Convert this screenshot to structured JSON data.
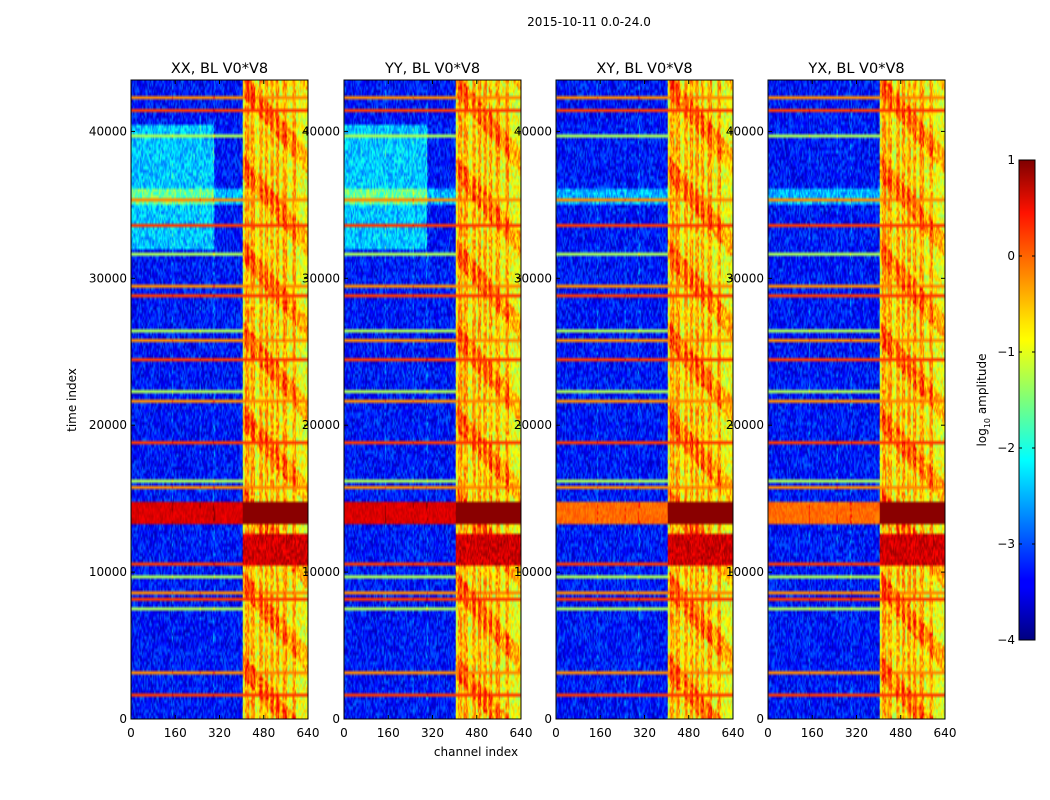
{
  "figure": {
    "suptitle": "2015-10-11 0.0-24.0"
  },
  "chart_data": {
    "type": "heatmap",
    "colormap": "jet",
    "xlabel": "channel index",
    "ylabel": "time index",
    "xlim": [
      0,
      640
    ],
    "ylim": [
      0,
      43500
    ],
    "xticks": [
      0,
      160,
      320,
      480,
      640
    ],
    "xtick_labels": [
      "0",
      "160",
      "320",
      "480",
      "640"
    ],
    "yticks": [
      0,
      10000,
      20000,
      30000,
      40000
    ],
    "ytick_labels": [
      "0",
      "10000",
      "20000",
      "30000",
      "40000"
    ],
    "panels": [
      {
        "title": "XX, BL V0*V8"
      },
      {
        "title": "YY, BL V0*V8"
      },
      {
        "title": "XY, BL V0*V8"
      },
      {
        "title": "YX, BL V0*V8"
      }
    ],
    "colorbar": {
      "label": "log",
      "label_sub": "10",
      "label_rest": " amplitude",
      "range": [
        -4,
        1
      ],
      "ticks": [
        1,
        0,
        -1,
        -2,
        -3,
        -4
      ],
      "tick_labels": [
        "1",
        "0",
        "−1",
        "−2",
        "−3",
        "−4"
      ]
    },
    "features": {
      "background_level": -3.3,
      "strong_channel_region": [
        405,
        640
      ],
      "strong_channels": [
        420,
        440,
        470,
        490,
        510,
        530,
        555,
        590
      ],
      "saturated_time_band": [
        13200,
        14800
      ],
      "high_time_band_2": [
        10500,
        12600
      ],
      "rfi_rows": [
        1700,
        3200,
        7500,
        8100,
        8600,
        9700,
        10600,
        15800,
        16300,
        18900,
        21700,
        22200,
        24400,
        25800,
        26400,
        28800,
        29400,
        31600,
        33500,
        35400,
        39600,
        41500,
        42300
      ],
      "faint_vertical_channels": [
        150,
        250,
        300
      ]
    }
  }
}
